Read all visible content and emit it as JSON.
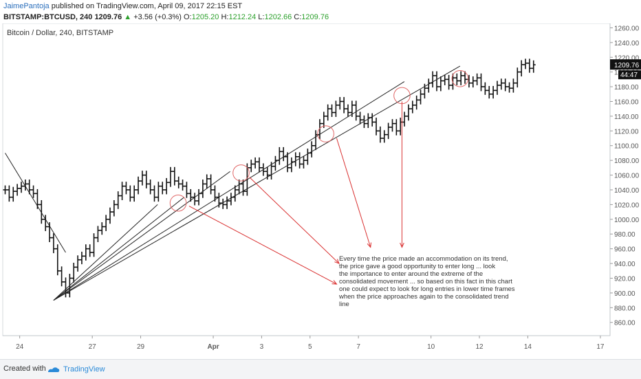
{
  "header": {
    "author": "JaimePantoja",
    "published_text": "published on TradingView.com, April 09, 2017 22:15 EST",
    "symbol": "BITSTAMP:BTCUSD, 240",
    "last": "1209.76",
    "change_arrow": "▲",
    "change": "+3.56 (+0.3%)",
    "o_label": "O:",
    "o_value": "1205.20",
    "h_label": "H:",
    "h_value": "1212.24",
    "l_label": "L:",
    "l_value": "1202.66",
    "c_label": "C:",
    "c_value": "1209.76"
  },
  "chart_data": {
    "type": "candlestick-ohlc-bars",
    "title": "Bitcoin / Dollar, 240, BITSTAMP",
    "x_tick_labels": [
      "24",
      "27",
      "29",
      "Apr",
      "3",
      "5",
      "7",
      "10",
      "12",
      "14",
      "17"
    ],
    "y_tick_labels": [
      "860.00",
      "880.00",
      "900.00",
      "920.00",
      "940.00",
      "960.00",
      "980.00",
      "1000.00",
      "1020.00",
      "1040.00",
      "1060.00",
      "1080.00",
      "1100.00",
      "1120.00",
      "1140.00",
      "1160.00",
      "1180.00",
      "1200.00",
      "1220.00",
      "1240.00",
      "1260.00"
    ],
    "ylim": [
      842,
      1266
    ],
    "xlim": [
      22.9,
      48.0
    ],
    "price_label": "1209.76",
    "countdown_label": "44:47",
    "annotation": [
      "Every time the price made an accommodation on its trend,",
      " the price gave a good opportunity to enter long ... look",
      " the importance to enter around the extreme of the",
      "consolidated movement ... so based on this fact in this chart",
      "one could expect to look for long entries in lower time frames",
      "when the price approaches again to the consolidated trend",
      "line"
    ],
    "close_series": {
      "x_start": 23.0,
      "x_step": 0.1667,
      "values": [
        1040,
        1030,
        1038,
        1042,
        1045,
        1048,
        1040,
        1035,
        1020,
        1000,
        990,
        975,
        960,
        930,
        915,
        900,
        920,
        935,
        945,
        950,
        960,
        955,
        975,
        985,
        990,
        1000,
        1010,
        1020,
        1032,
        1045,
        1040,
        1030,
        1040,
        1052,
        1060,
        1048,
        1040,
        1030,
        1045,
        1040,
        1050,
        1065,
        1052,
        1048,
        1045,
        1035,
        1030,
        1025,
        1035,
        1048,
        1055,
        1040,
        1030,
        1022,
        1020,
        1025,
        1030,
        1040,
        1048,
        1038,
        1070,
        1075,
        1078,
        1070,
        1065,
        1060,
        1072,
        1080,
        1092,
        1085,
        1070,
        1078,
        1085,
        1075,
        1080,
        1090,
        1100,
        1115,
        1130,
        1140,
        1150,
        1145,
        1155,
        1160,
        1150,
        1145,
        1155,
        1140,
        1135,
        1130,
        1138,
        1132,
        1120,
        1110,
        1115,
        1125,
        1130,
        1120,
        1132,
        1140,
        1150,
        1155,
        1162,
        1170,
        1178,
        1185,
        1195,
        1180,
        1188,
        1190,
        1182,
        1192,
        1188,
        1195,
        1190,
        1185,
        1188,
        1192,
        1180,
        1175,
        1170,
        1175,
        1182,
        1185,
        1180,
        1178,
        1185,
        1200,
        1210,
        1212,
        1205,
        1209.76
      ]
    },
    "trend_lines": [
      {
        "from": [
          25.0,
          890
        ],
        "to": [
          29.3,
          1020
        ]
      },
      {
        "from": [
          25.0,
          890
        ],
        "to": [
          30.4,
          1030
        ]
      },
      {
        "from": [
          25.0,
          890
        ],
        "to": [
          32.3,
          1065
        ]
      },
      {
        "from": [
          25.0,
          890
        ],
        "to": [
          39.5,
          1187
        ]
      },
      {
        "from": [
          25.0,
          890
        ],
        "to": [
          41.8,
          1208
        ]
      }
    ],
    "downtrend_line": {
      "from": [
        23.0,
        1090
      ],
      "to": [
        25.5,
        955
      ]
    },
    "circles": [
      {
        "center": [
          30.15,
          1022
        ],
        "radius_data_units": 11
      },
      {
        "center": [
          32.75,
          1063
        ],
        "radius_data_units": 11
      },
      {
        "center": [
          36.25,
          1116
        ],
        "radius_data_units": 11
      },
      {
        "center": [
          39.4,
          1168
        ],
        "radius_data_units": 11
      },
      {
        "center": [
          41.8,
          1191
        ],
        "radius_data_units": 11
      }
    ],
    "arrows": [
      {
        "from": [
          30.6,
          1018
        ],
        "to": [
          36.7,
          912
        ]
      },
      {
        "from": [
          33.1,
          1057
        ],
        "to": [
          36.8,
          940
        ]
      },
      {
        "from": [
          36.7,
          1110
        ],
        "to": [
          38.1,
          962
        ]
      },
      {
        "from": [
          39.4,
          1160
        ],
        "to": [
          39.4,
          962
        ]
      }
    ],
    "colors": {
      "bars": "#111111",
      "trend": "#222222",
      "circle": "#e06666",
      "arrow": "#d93030"
    }
  },
  "footer": {
    "created_with": "Created with",
    "brand": "TradingView"
  }
}
